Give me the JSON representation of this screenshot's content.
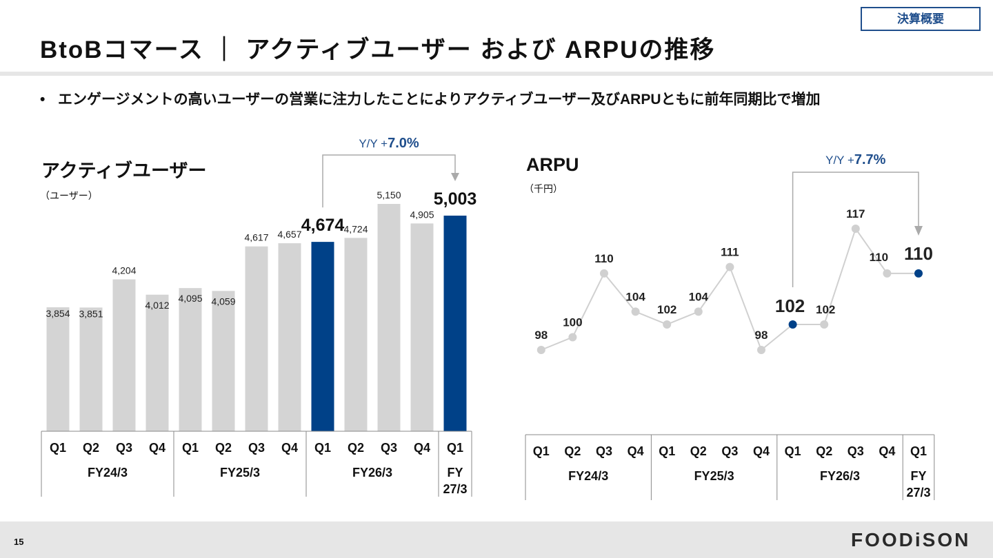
{
  "header": {
    "badge": "決算概要",
    "title": "BtoBコマース ｜ アクティブユーザー および ARPUの推移",
    "bullet": "エンゲージメントの高いユーザーの営業に注力したことによりアクティブユーザー及びARPUともに前年同期比で増加"
  },
  "footer": {
    "page": "15",
    "logo": "FOODiSON"
  },
  "colors": {
    "accent": "#004188",
    "bar_grey": "#d4d4d4",
    "line_grey": "#d0d0d0",
    "text_blue": "#1f4e8c"
  },
  "chart_data": [
    {
      "type": "bar",
      "title": "アクティブユーザー",
      "unit": "（ユーザー）",
      "quarters": [
        "Q1",
        "Q2",
        "Q3",
        "Q4",
        "Q1",
        "Q2",
        "Q3",
        "Q4",
        "Q1",
        "Q2",
        "Q3",
        "Q4",
        "Q1"
      ],
      "fiscal_years": [
        {
          "label": "FY24/3",
          "span": 4
        },
        {
          "label": "FY25/3",
          "span": 4
        },
        {
          "label": "FY26/3",
          "span": 4
        },
        {
          "label": "FY\n27/3",
          "span": 1
        }
      ],
      "values": [
        3854,
        3851,
        4204,
        4012,
        4095,
        4059,
        4617,
        4657,
        4674,
        4724,
        5150,
        4905,
        5003
      ],
      "value_labels": [
        "3,854",
        "3,851",
        "4,204",
        "4,012",
        "4,095",
        "4,059",
        "4,617",
        "4,657",
        "4,674",
        "4,724",
        "5,150",
        "4,905",
        "5,003"
      ],
      "highlight_indices": [
        8,
        12
      ],
      "ylim": [
        0,
        5150
      ],
      "yoy": {
        "prefix": "Y/Y +",
        "value": "7.0%",
        "from_index": 8,
        "to_index": 12
      }
    },
    {
      "type": "line",
      "title": "ARPU",
      "unit": "（千円）",
      "quarters": [
        "Q1",
        "Q2",
        "Q3",
        "Q4",
        "Q1",
        "Q2",
        "Q3",
        "Q4",
        "Q1",
        "Q2",
        "Q3",
        "Q4",
        "Q1"
      ],
      "fiscal_years": [
        {
          "label": "FY24/3",
          "span": 4
        },
        {
          "label": "FY25/3",
          "span": 4
        },
        {
          "label": "FY26/3",
          "span": 4
        },
        {
          "label": "FY\n27/3",
          "span": 1
        }
      ],
      "values": [
        98,
        100,
        110,
        104,
        102,
        104,
        111,
        98,
        102,
        102,
        117,
        110,
        110
      ],
      "value_labels": [
        "98",
        "100",
        "110",
        "104",
        "102",
        "104",
        "111",
        "98",
        "102",
        "102",
        "117",
        "110",
        "110"
      ],
      "highlight_indices": [
        8,
        12
      ],
      "ylim": [
        98,
        117
      ],
      "yoy": {
        "prefix": "Y/Y +",
        "value": "7.7%",
        "from_index": 8,
        "to_index": 12
      }
    }
  ]
}
